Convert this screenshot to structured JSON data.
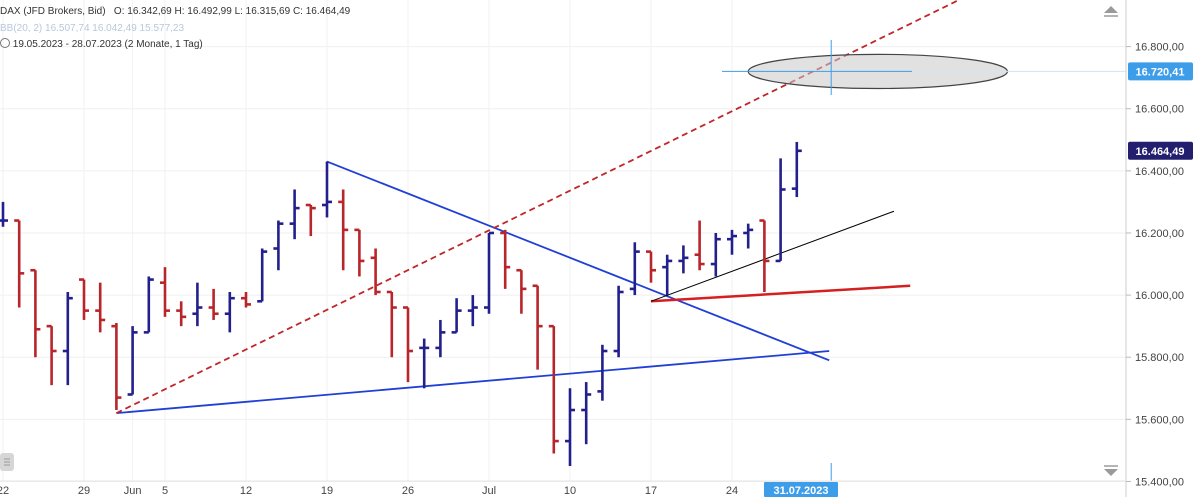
{
  "header": {
    "symbol": "DAX (JFD Brokers, Bid)",
    "ohlc": "O: 16.342,69  H: 16.492,99  L: 16.315,69  C: 16.464,49",
    "bb_text": "BB(20, 2)  16.507,74  16.042,49  15.577,23",
    "range_text": "19.05.2023 - 28.07.2023  (2 Monate, 1 Tag)"
  },
  "price_tags": {
    "crosshair": "16.720,41",
    "last": "16.464,49"
  },
  "date_tag": "31.07.2023",
  "colors": {
    "up": "#231f8c",
    "down": "#b8252a",
    "trend_blue": "#1f3fd6",
    "trend_red": "#d42020",
    "crosshair_tag": "#3d9de8",
    "last_tag": "#231f6e"
  },
  "icons": {
    "scroll_up": "triangle-up-icon",
    "scroll_down": "triangle-down-icon"
  },
  "chart_data": {
    "type": "ohlc",
    "title": "DAX (JFD Brokers, Bid)",
    "ylim": [
      15350,
      16950
    ],
    "y_ticks": [
      15400,
      15600,
      15800,
      16000,
      16200,
      16400,
      16600,
      16800
    ],
    "y_tick_labels": [
      "15.400,00",
      "15.600,00",
      "15.800,00",
      "16.000,00",
      "16.200,00",
      "16.400,00",
      "16.600,00",
      "16.800,00"
    ],
    "x_ticks": [
      {
        "label": "22",
        "index": 0
      },
      {
        "label": "29",
        "index": 5
      },
      {
        "label": "Jun",
        "index": 8
      },
      {
        "label": "5",
        "index": 10
      },
      {
        "label": "12",
        "index": 15
      },
      {
        "label": "19",
        "index": 20
      },
      {
        "label": "26",
        "index": 25
      },
      {
        "label": "Jul",
        "index": 30
      },
      {
        "label": "10",
        "index": 35
      },
      {
        "label": "17",
        "index": 40
      },
      {
        "label": "24",
        "index": 45
      }
    ],
    "bars": [
      {
        "date": "22.05.2023",
        "o": 16240,
        "h": 16300,
        "l": 16220,
        "c": 16240
      },
      {
        "date": "23.05.2023",
        "o": 16240,
        "h": 16240,
        "l": 15960,
        "c": 16070
      },
      {
        "date": "24.05.2023",
        "o": 16080,
        "h": 16080,
        "l": 15800,
        "c": 15890
      },
      {
        "date": "25.05.2023",
        "o": 15900,
        "h": 15900,
        "l": 15710,
        "c": 15820
      },
      {
        "date": "26.05.2023",
        "o": 15820,
        "h": 16010,
        "l": 15710,
        "c": 15990
      },
      {
        "date": "29.05.2023",
        "o": 16050,
        "h": 16050,
        "l": 15920,
        "c": 15950
      },
      {
        "date": "30.05.2023",
        "o": 15950,
        "h": 16040,
        "l": 15880,
        "c": 15920
      },
      {
        "date": "31.05.2023",
        "o": 15900,
        "h": 15910,
        "l": 15630,
        "c": 15670
      },
      {
        "date": "01.06.2023",
        "o": 15680,
        "h": 15900,
        "l": 15680,
        "c": 15880
      },
      {
        "date": "02.06.2023",
        "o": 15880,
        "h": 16060,
        "l": 15880,
        "c": 16050
      },
      {
        "date": "05.06.2023",
        "o": 16040,
        "h": 16090,
        "l": 15930,
        "c": 15950
      },
      {
        "date": "06.06.2023",
        "o": 15950,
        "h": 15980,
        "l": 15900,
        "c": 15930
      },
      {
        "date": "07.06.2023",
        "o": 15940,
        "h": 16040,
        "l": 15900,
        "c": 15960
      },
      {
        "date": "08.06.2023",
        "o": 15960,
        "h": 16020,
        "l": 15920,
        "c": 15940
      },
      {
        "date": "09.06.2023",
        "o": 15940,
        "h": 16010,
        "l": 15880,
        "c": 15990
      },
      {
        "date": "12.06.2023",
        "o": 15990,
        "h": 16010,
        "l": 15960,
        "c": 15970
      },
      {
        "date": "13.06.2023",
        "o": 15980,
        "h": 16150,
        "l": 15980,
        "c": 16140
      },
      {
        "date": "14.06.2023",
        "o": 16150,
        "h": 16240,
        "l": 16080,
        "c": 16230
      },
      {
        "date": "15.06.2023",
        "o": 16230,
        "h": 16340,
        "l": 16180,
        "c": 16280
      },
      {
        "date": "16.06.2023",
        "o": 16290,
        "h": 16290,
        "l": 16190,
        "c": 16280
      },
      {
        "date": "19.06.2023",
        "o": 16290,
        "h": 16430,
        "l": 16250,
        "c": 16300
      },
      {
        "date": "20.06.2023",
        "o": 16300,
        "h": 16340,
        "l": 16080,
        "c": 16210
      },
      {
        "date": "21.06.2023",
        "o": 16210,
        "h": 16210,
        "l": 16060,
        "c": 16110
      },
      {
        "date": "22.06.2023",
        "o": 16120,
        "h": 16150,
        "l": 16000,
        "c": 16010
      },
      {
        "date": "23.06.2023",
        "o": 16010,
        "h": 16010,
        "l": 15800,
        "c": 15960
      },
      {
        "date": "26.06.2023",
        "o": 15960,
        "h": 15960,
        "l": 15720,
        "c": 15820
      },
      {
        "date": "27.06.2023",
        "o": 15830,
        "h": 15860,
        "l": 15700,
        "c": 15830
      },
      {
        "date": "28.06.2023",
        "o": 15830,
        "h": 15920,
        "l": 15800,
        "c": 15880
      },
      {
        "date": "29.06.2023",
        "o": 15880,
        "h": 15990,
        "l": 15880,
        "c": 15950
      },
      {
        "date": "30.06.2023",
        "o": 15950,
        "h": 16000,
        "l": 15900,
        "c": 15960
      },
      {
        "date": "03.07.2023",
        "o": 15960,
        "h": 16200,
        "l": 15940,
        "c": 16200
      },
      {
        "date": "04.07.2023",
        "o": 16200,
        "h": 16210,
        "l": 16020,
        "c": 16090
      },
      {
        "date": "05.07.2023",
        "o": 16080,
        "h": 16080,
        "l": 15940,
        "c": 16020
      },
      {
        "date": "06.07.2023",
        "o": 16030,
        "h": 16030,
        "l": 15760,
        "c": 15900
      },
      {
        "date": "07.07.2023",
        "o": 15900,
        "h": 15900,
        "l": 15490,
        "c": 15530
      },
      {
        "date": "10.07.2023",
        "o": 15530,
        "h": 15700,
        "l": 15450,
        "c": 15630
      },
      {
        "date": "11.07.2023",
        "o": 15630,
        "h": 15720,
        "l": 15520,
        "c": 15680
      },
      {
        "date": "12.07.2023",
        "o": 15690,
        "h": 15840,
        "l": 15660,
        "c": 15820
      },
      {
        "date": "13.07.2023",
        "o": 15820,
        "h": 16030,
        "l": 15800,
        "c": 16010
      },
      {
        "date": "14.07.2023",
        "o": 16020,
        "h": 16170,
        "l": 16000,
        "c": 16140
      },
      {
        "date": "17.07.2023",
        "o": 16140,
        "h": 16140,
        "l": 16040,
        "c": 16080
      },
      {
        "date": "18.07.2023",
        "o": 16090,
        "h": 16130,
        "l": 16000,
        "c": 16110
      },
      {
        "date": "19.07.2023",
        "o": 16110,
        "h": 16160,
        "l": 16070,
        "c": 16120
      },
      {
        "date": "20.07.2023",
        "o": 16130,
        "h": 16240,
        "l": 16080,
        "c": 16100
      },
      {
        "date": "21.07.2023",
        "o": 16100,
        "h": 16200,
        "l": 16060,
        "c": 16180
      },
      {
        "date": "24.07.2023",
        "o": 16180,
        "h": 16210,
        "l": 16130,
        "c": 16190
      },
      {
        "date": "25.07.2023",
        "o": 16200,
        "h": 16230,
        "l": 16150,
        "c": 16210
      },
      {
        "date": "26.07.2023",
        "o": 16240,
        "h": 16240,
        "l": 16010,
        "c": 16110
      },
      {
        "date": "27.07.2023",
        "o": 16110,
        "h": 16440,
        "l": 16110,
        "c": 16340
      },
      {
        "date": "28.07.2023",
        "o": 16342.69,
        "h": 16492.99,
        "l": 16315.69,
        "c": 16464.49
      }
    ],
    "trendlines": [
      {
        "name": "upper-falling",
        "color": "#1f3fd6",
        "style": "solid",
        "from": {
          "index": 20,
          "price": 16430
        },
        "to": {
          "index": 51,
          "price": 15790
        }
      },
      {
        "name": "lower-rising",
        "color": "#1f3fd6",
        "style": "solid",
        "from": {
          "index": 7,
          "price": 15620
        },
        "to": {
          "index": 51,
          "price": 15820
        }
      },
      {
        "name": "channel-dashed",
        "color": "#c0262a",
        "style": "dashed",
        "from": {
          "index": 7,
          "price": 15620
        },
        "to": {
          "index": 59,
          "price": 16950
        }
      },
      {
        "name": "red-support",
        "color": "#d42020",
        "style": "solid",
        "from": {
          "index": 40,
          "price": 15980
        },
        "to": {
          "index": 56,
          "price": 16030
        }
      },
      {
        "name": "black-thin",
        "color": "#000000",
        "style": "solid",
        "from": {
          "index": 40,
          "price": 15980
        },
        "to": {
          "index": 55,
          "price": 16270
        }
      }
    ],
    "ellipse": {
      "index": 54,
      "price": 16720,
      "rx_bars": 8,
      "ry_price": 55
    },
    "crosshair": {
      "index": 51,
      "price": 16720.41
    }
  }
}
